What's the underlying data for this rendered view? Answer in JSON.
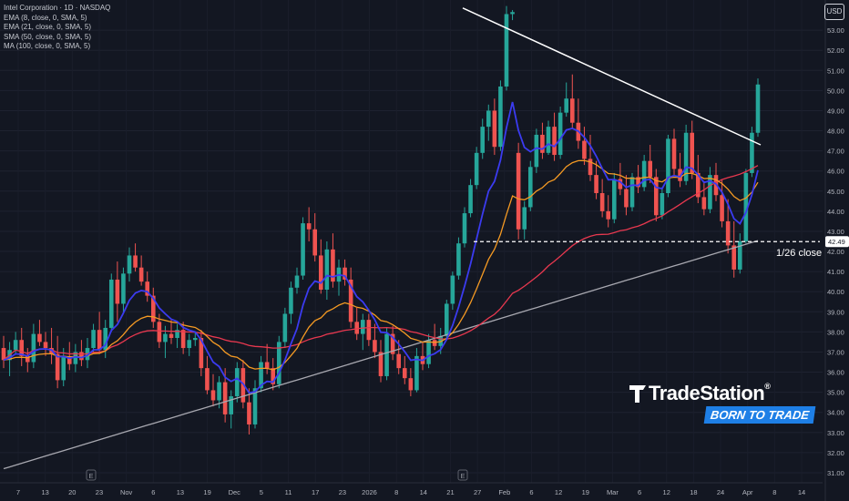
{
  "header": {
    "symbol_line": "Intel Corporation · 1D · NASDAQ",
    "indicators": [
      "EMA (8, close, 0, SMA, 5)",
      "EMA (21, close, 0, SMA, 5)",
      "SMA (50, close, 0, SMA, 5)",
      "MA (100, close, 0, SMA, 5)"
    ],
    "currency": "USD"
  },
  "brand": {
    "name": "TradeStation",
    "registered": "®",
    "tagline": "BORN TO TRADE"
  },
  "colors": {
    "background": "#131722",
    "up": "#26a69a",
    "down": "#ef5350",
    "ema8": "#3b3bf0",
    "ema21": "#f59a23",
    "sma50": "#e8384f",
    "ma100": "#a8a8b0",
    "trendline": "#ffffff",
    "brand_blue": "#1e7fe6"
  },
  "chart_data": {
    "type": "candlestick",
    "title": "Intel Corporation · 1D · NASDAQ",
    "ylim": [
      30.5,
      54.5
    ],
    "y_ticks": [
      31,
      32,
      33,
      34,
      35,
      36,
      37,
      38,
      39,
      40,
      41,
      42,
      43,
      44,
      45,
      46,
      47,
      48,
      49,
      50,
      51,
      52,
      53
    ],
    "x_ticks": [
      "7",
      "13",
      "20",
      "23",
      "Nov",
      "6",
      "13",
      "19",
      "Dec",
      "5",
      "11",
      "17",
      "23",
      "2026",
      "8",
      "14",
      "21",
      "27",
      "Feb",
      "6",
      "12",
      "19",
      "Mar",
      "6",
      "12",
      "18",
      "24",
      "Apr",
      "8",
      "14"
    ],
    "ohlc_approx": [
      [
        37.2,
        37.8,
        36.2,
        36.6
      ],
      [
        36.6,
        37.5,
        35.8,
        37.1
      ],
      [
        37.1,
        38.0,
        36.9,
        37.6
      ],
      [
        37.6,
        38.2,
        36.3,
        36.8
      ],
      [
        36.8,
        37.2,
        36.0,
        36.5
      ],
      [
        36.5,
        38.4,
        36.2,
        37.9
      ],
      [
        37.9,
        38.6,
        37.3,
        37.5
      ],
      [
        37.5,
        38.0,
        36.8,
        37.2
      ],
      [
        37.2,
        38.2,
        36.4,
        36.9
      ],
      [
        36.9,
        37.8,
        35.2,
        35.6
      ],
      [
        35.6,
        37.2,
        35.3,
        36.8
      ],
      [
        36.8,
        37.5,
        36.1,
        36.4
      ],
      [
        36.4,
        37.4,
        36.0,
        37.0
      ],
      [
        37.0,
        37.6,
        36.3,
        36.6
      ],
      [
        36.6,
        37.7,
        36.2,
        37.2
      ],
      [
        37.2,
        38.4,
        37.0,
        38.1
      ],
      [
        38.1,
        39.0,
        36.9,
        37.1
      ],
      [
        37.1,
        38.6,
        36.7,
        38.2
      ],
      [
        38.2,
        40.9,
        38.0,
        40.6
      ],
      [
        40.6,
        41.5,
        38.5,
        39.4
      ],
      [
        39.4,
        41.2,
        38.9,
        40.9
      ],
      [
        40.9,
        42.2,
        40.5,
        41.8
      ],
      [
        41.8,
        42.4,
        41.0,
        41.2
      ],
      [
        41.2,
        41.8,
        40.3,
        40.5
      ],
      [
        40.5,
        41.0,
        39.5,
        39.8
      ],
      [
        39.8,
        40.2,
        38.2,
        38.5
      ],
      [
        38.5,
        38.9,
        37.2,
        37.5
      ],
      [
        37.5,
        38.3,
        36.7,
        37.9
      ],
      [
        37.9,
        38.6,
        37.4,
        37.7
      ],
      [
        37.7,
        38.4,
        37.2,
        38.1
      ],
      [
        38.1,
        38.5,
        36.9,
        37.2
      ],
      [
        37.2,
        37.9,
        36.8,
        37.6
      ],
      [
        37.6,
        38.0,
        37.3,
        37.7
      ],
      [
        37.7,
        38.1,
        35.8,
        36.2
      ],
      [
        36.2,
        36.8,
        34.9,
        35.1
      ],
      [
        35.1,
        35.9,
        34.3,
        34.6
      ],
      [
        34.6,
        35.8,
        34.2,
        35.5
      ],
      [
        35.5,
        36.2,
        33.5,
        33.9
      ],
      [
        33.9,
        35.1,
        33.2,
        34.8
      ],
      [
        34.8,
        36.5,
        34.5,
        36.2
      ],
      [
        36.2,
        36.6,
        34.2,
        34.5
      ],
      [
        34.5,
        35.2,
        32.9,
        33.4
      ],
      [
        33.4,
        35.6,
        33.2,
        35.2
      ],
      [
        35.2,
        36.8,
        35.0,
        36.5
      ],
      [
        36.5,
        37.4,
        35.9,
        36.2
      ],
      [
        36.2,
        36.7,
        35.1,
        35.4
      ],
      [
        35.4,
        37.8,
        35.2,
        37.5
      ],
      [
        37.5,
        39.2,
        37.2,
        38.9
      ],
      [
        38.9,
        40.5,
        38.4,
        40.2
      ],
      [
        40.2,
        41.2,
        39.9,
        40.8
      ],
      [
        40.8,
        43.7,
        40.6,
        43.4
      ],
      [
        43.4,
        44.2,
        42.5,
        43.1
      ],
      [
        43.1,
        43.9,
        41.5,
        41.8
      ],
      [
        41.8,
        42.6,
        39.9,
        40.1
      ],
      [
        40.1,
        42.5,
        39.6,
        42.1
      ],
      [
        42.1,
        42.9,
        40.2,
        40.5
      ],
      [
        40.5,
        41.6,
        39.8,
        41.2
      ],
      [
        41.2,
        41.6,
        40.3,
        40.6
      ],
      [
        40.6,
        41.2,
        38.2,
        38.5
      ],
      [
        38.5,
        39.2,
        37.6,
        37.9
      ],
      [
        37.9,
        38.9,
        37.1,
        38.6
      ],
      [
        38.6,
        38.9,
        37.3,
        37.6
      ],
      [
        37.6,
        38.4,
        36.7,
        37.0
      ],
      [
        37.0,
        37.6,
        35.5,
        35.8
      ],
      [
        35.8,
        38.2,
        35.6,
        37.9
      ],
      [
        37.9,
        38.3,
        36.6,
        36.9
      ],
      [
        36.9,
        37.6,
        35.9,
        36.2
      ],
      [
        36.2,
        36.8,
        35.4,
        35.7
      ],
      [
        35.7,
        36.2,
        34.8,
        35.1
      ],
      [
        35.1,
        37.2,
        35.0,
        36.8
      ],
      [
        36.8,
        37.5,
        36.1,
        36.4
      ],
      [
        36.4,
        37.9,
        36.2,
        37.6
      ],
      [
        37.6,
        38.4,
        37.1,
        37.3
      ],
      [
        37.3,
        38.2,
        36.9,
        37.8
      ],
      [
        37.8,
        39.6,
        37.7,
        39.4
      ],
      [
        39.4,
        41.0,
        39.1,
        40.8
      ],
      [
        40.8,
        42.7,
        40.6,
        42.4
      ],
      [
        42.4,
        44.2,
        42.2,
        43.9
      ],
      [
        43.9,
        45.6,
        43.7,
        45.3
      ],
      [
        45.3,
        47.2,
        45.1,
        46.9
      ],
      [
        46.9,
        48.6,
        46.6,
        48.2
      ],
      [
        48.2,
        49.3,
        47.5,
        49.0
      ],
      [
        49.0,
        49.6,
        46.8,
        47.2
      ],
      [
        47.2,
        50.5,
        47.0,
        50.2
      ],
      [
        50.2,
        54.2,
        50.0,
        53.8
      ],
      [
        53.8,
        54.0,
        53.5,
        53.9
      ],
      [
        46.9,
        47.4,
        42.6,
        43.1
      ],
      [
        43.1,
        44.5,
        42.6,
        44.2
      ],
      [
        44.2,
        46.5,
        44.0,
        46.2
      ],
      [
        46.2,
        48.1,
        45.9,
        47.8
      ],
      [
        47.8,
        48.4,
        46.6,
        46.9
      ],
      [
        46.9,
        48.5,
        46.8,
        48.2
      ],
      [
        48.2,
        48.9,
        46.5,
        46.8
      ],
      [
        46.8,
        49.2,
        46.6,
        48.9
      ],
      [
        48.9,
        50.4,
        48.7,
        49.6
      ],
      [
        49.6,
        50.8,
        48.1,
        48.4
      ],
      [
        48.4,
        49.6,
        47.1,
        47.5
      ],
      [
        47.5,
        48.2,
        46.3,
        46.6
      ],
      [
        46.6,
        47.8,
        45.5,
        45.8
      ],
      [
        45.8,
        46.5,
        44.6,
        44.9
      ],
      [
        44.9,
        45.6,
        43.7,
        44.0
      ],
      [
        44.0,
        44.8,
        43.2,
        43.6
      ],
      [
        43.6,
        45.9,
        43.4,
        45.6
      ],
      [
        45.6,
        46.4,
        44.8,
        45.1
      ],
      [
        45.1,
        45.8,
        43.8,
        44.2
      ],
      [
        44.2,
        45.9,
        44.0,
        45.7
      ],
      [
        45.7,
        46.3,
        44.9,
        45.2
      ],
      [
        45.2,
        46.8,
        45.0,
        46.5
      ],
      [
        46.5,
        47.3,
        45.4,
        45.7
      ],
      [
        45.7,
        46.1,
        43.5,
        43.8
      ],
      [
        43.8,
        45.2,
        43.6,
        44.9
      ],
      [
        44.9,
        47.8,
        44.7,
        47.6
      ],
      [
        47.6,
        48.1,
        45.8,
        46.1
      ],
      [
        46.1,
        46.9,
        45.2,
        45.5
      ],
      [
        45.5,
        48.3,
        45.3,
        47.9
      ],
      [
        47.9,
        48.5,
        45.6,
        45.9
      ],
      [
        45.9,
        46.8,
        44.4,
        44.7
      ],
      [
        44.7,
        45.5,
        43.8,
        44.1
      ],
      [
        44.1,
        46.2,
        43.9,
        45.8
      ],
      [
        45.8,
        46.4,
        44.5,
        44.8
      ],
      [
        44.8,
        45.6,
        43.2,
        43.5
      ],
      [
        43.5,
        44.6,
        41.9,
        42.3
      ],
      [
        42.3,
        43.5,
        40.7,
        41.1
      ],
      [
        41.1,
        42.9,
        40.9,
        42.5
      ],
      [
        42.5,
        46.1,
        42.4,
        45.9
      ],
      [
        45.9,
        48.2,
        45.7,
        47.9
      ],
      [
        47.9,
        50.6,
        47.7,
        50.3
      ]
    ],
    "annotations": [
      {
        "text": "42.49",
        "kind": "price-tag"
      },
      {
        "text": "1/26 close",
        "kind": "label"
      }
    ],
    "lines": [
      "trendline",
      "1/26 close level 42.49"
    ],
    "series": [
      {
        "name": "EMA (8, close, 0, SMA, 5)"
      },
      {
        "name": "EMA (21, close, 0, SMA, 5)"
      },
      {
        "name": "SMA (50, close, 0, SMA, 5)"
      },
      {
        "name": "MA (100, close, 0, SMA, 5)"
      }
    ],
    "grid": true,
    "earnings_markers": 2,
    "earnings_label": "E"
  }
}
